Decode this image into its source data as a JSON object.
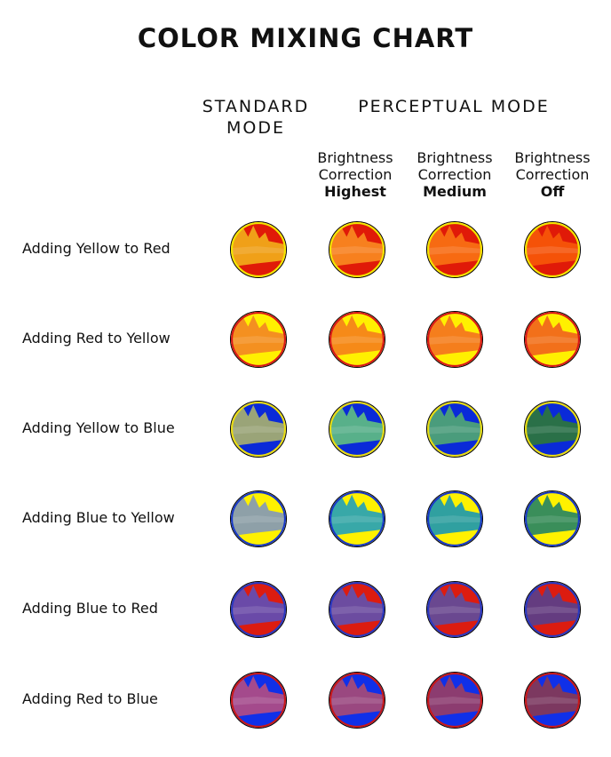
{
  "title": "COLOR MIXING CHART",
  "modes": {
    "standard": [
      "STANDARD",
      "MODE"
    ],
    "perceptual": "PERCEPTUAL MODE"
  },
  "columns": [
    {
      "line1": "Brightness",
      "line2": "Correction",
      "level": "Highest"
    },
    {
      "line1": "Brightness",
      "line2": "Correction",
      "level": "Medium"
    },
    {
      "line1": "Brightness",
      "line2": "Correction",
      "level": "Off"
    }
  ],
  "rows": [
    {
      "label": "Adding Yellow to Red",
      "base": "#e01a08",
      "rim": "#f2e600",
      "mix": [
        "#f0a018",
        "#f7801e",
        "#f76a12",
        "#f55208"
      ]
    },
    {
      "label": "Adding Red to Yellow",
      "base": "#fff000",
      "rim": "#d81818",
      "mix": [
        "#f49020",
        "#f68a18",
        "#f57e1c",
        "#f2701a"
      ]
    },
    {
      "label": "Adding Yellow to Blue",
      "base": "#0a2ad8",
      "rim": "#eadc10",
      "mix": [
        "#9aa478",
        "#58b08a",
        "#4a9c7c",
        "#2a7048"
      ]
    },
    {
      "label": "Adding Blue to Yellow",
      "base": "#fff100",
      "rim": "#1838c8",
      "mix": [
        "#8ea0a8",
        "#38a8a8",
        "#30a0a0",
        "#3a8e5a"
      ]
    },
    {
      "label": "Adding Blue to Red",
      "base": "#dc1c10",
      "rim": "#2838c0",
      "mix": [
        "#6a4aa8",
        "#6c4ca0",
        "#6a4890",
        "#643c80"
      ]
    },
    {
      "label": "Adding Red to Blue",
      "base": "#1030e8",
      "rim": "#c81818",
      "mix": [
        "#a44a8c",
        "#9a4880",
        "#8c3c70",
        "#7c3860"
      ]
    }
  ]
}
